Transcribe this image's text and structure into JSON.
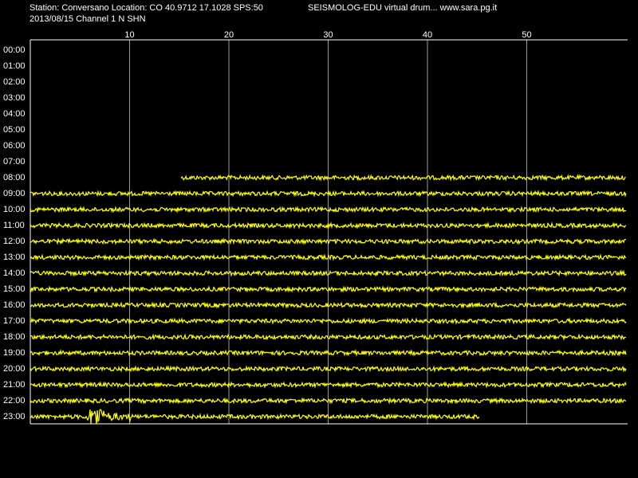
{
  "header": {
    "station": "Station: Conversano Location: CO 40.9712 17.1028 SPS:50",
    "title": "SEISMOLOG-EDU virtual drum... www.sara.pg.it",
    "date": "2013/08/15  Channel 1 N SHN"
  },
  "chart_data": {
    "type": "helicorder",
    "color": "#ffff00",
    "rows": [
      "00:00",
      "01:00",
      "02:00",
      "03:00",
      "04:00",
      "05:00",
      "06:00",
      "07:00",
      "08:00",
      "09:00",
      "10:00",
      "11:00",
      "12:00",
      "13:00",
      "14:00",
      "15:00",
      "16:00",
      "17:00",
      "18:00",
      "19:00",
      "20:00",
      "21:00",
      "22:00",
      "23:00"
    ],
    "xlim": [
      0,
      60
    ],
    "xticks": [
      10,
      20,
      30,
      40,
      50
    ],
    "grid": true,
    "traces": [
      {
        "row": 8,
        "start": 15.2,
        "end": 60
      },
      {
        "row": 9,
        "start": 0,
        "end": 60
      },
      {
        "row": 10,
        "start": 0,
        "end": 60
      },
      {
        "row": 11,
        "start": 0,
        "end": 60
      },
      {
        "row": 12,
        "start": 0,
        "end": 60
      },
      {
        "row": 13,
        "start": 0,
        "end": 60
      },
      {
        "row": 14,
        "start": 0,
        "end": 60
      },
      {
        "row": 15,
        "start": 0,
        "end": 60
      },
      {
        "row": 16,
        "start": 0,
        "end": 60
      },
      {
        "row": 17,
        "start": 0,
        "end": 60
      },
      {
        "row": 18,
        "start": 0,
        "end": 60
      },
      {
        "row": 19,
        "start": 0,
        "end": 60
      },
      {
        "row": 20,
        "start": 0,
        "end": 60
      },
      {
        "row": 21,
        "start": 0,
        "end": 60
      },
      {
        "row": 22,
        "start": 0,
        "end": 60
      },
      {
        "row": 23,
        "start": 0,
        "end": 45.3
      }
    ],
    "events": [
      {
        "row": 23,
        "start": 5.6,
        "end": 10.2
      }
    ]
  }
}
